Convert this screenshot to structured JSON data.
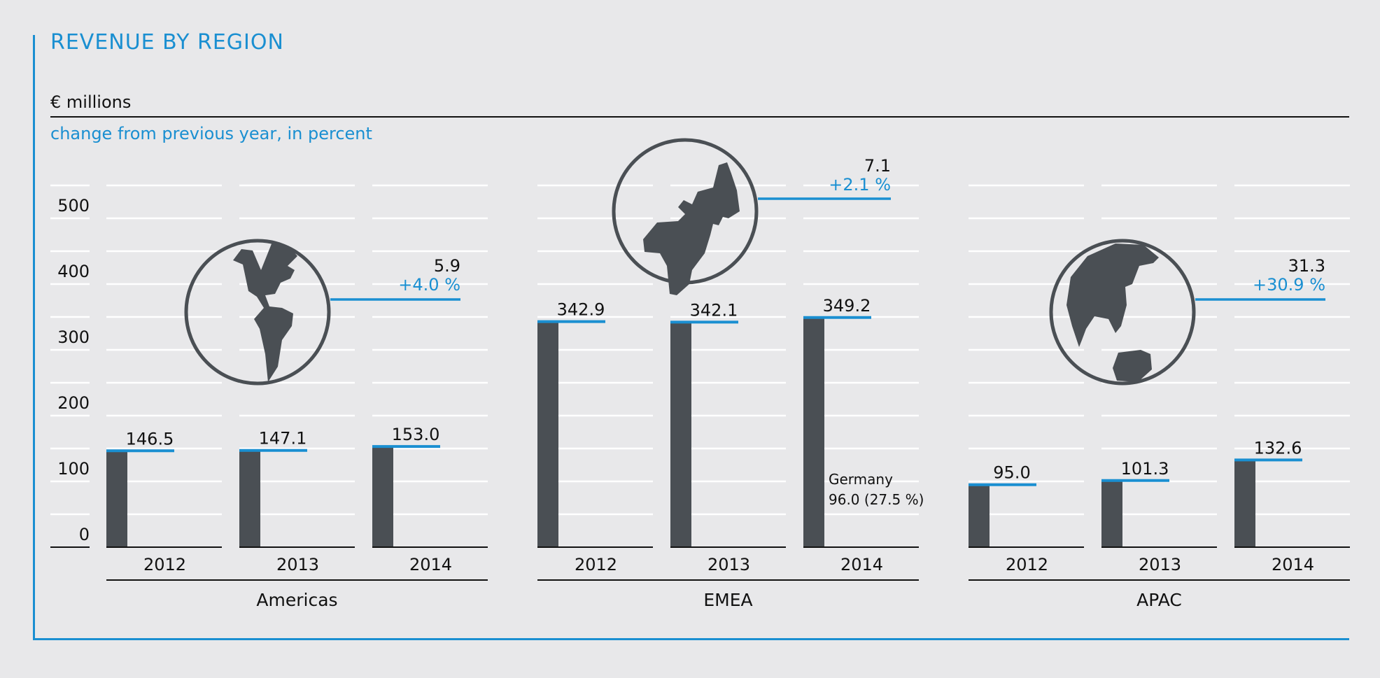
{
  "header": {
    "title": "REVENUE BY REGION",
    "unit": "€ millions",
    "subtitle": "change from previous year, in percent"
  },
  "colors": {
    "accent": "#1a8fd1",
    "bar": "#4a4f54",
    "grid": "#ffffff",
    "background": "#e8e8ea"
  },
  "chart_data": {
    "type": "bar",
    "title": "REVENUE BY REGION",
    "ylabel": "€ millions",
    "ylim": [
      0,
      550
    ],
    "yticks": [
      0,
      100,
      200,
      300,
      400,
      500
    ],
    "ytick_labels": [
      "0",
      "100",
      "200",
      "300",
      "400",
      "500"
    ],
    "grid": true,
    "categories": [
      "2012",
      "2013",
      "2014"
    ],
    "regions": [
      {
        "name": "Americas",
        "icon": "globe-americas-icon",
        "values": [
          146.5,
          147.1,
          153.0
        ],
        "value_labels": [
          "146.5",
          "147.1",
          "153.0"
        ],
        "change_abs": "5.9",
        "change_pct": "+4.0 %"
      },
      {
        "name": "EMEA",
        "icon": "globe-europe-africa-icon",
        "values": [
          342.9,
          342.1,
          349.2
        ],
        "value_labels": [
          "342.9",
          "342.1",
          "349.2"
        ],
        "change_abs": "7.1",
        "change_pct": "+2.1 %",
        "annotation": {
          "year": "2014",
          "line1": "Germany",
          "line2": "96.0 (27.5 %)"
        }
      },
      {
        "name": "APAC",
        "icon": "globe-asia-australia-icon",
        "values": [
          95.0,
          101.3,
          132.6
        ],
        "value_labels": [
          "95.0",
          "101.3",
          "132.6"
        ],
        "change_abs": "31.3",
        "change_pct": "+30.9 %"
      }
    ]
  }
}
